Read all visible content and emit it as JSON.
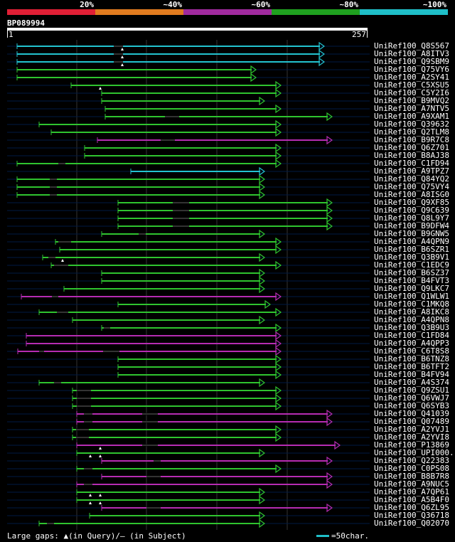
{
  "legend": {
    "labels": [
      "20%",
      "~40%",
      "~60%",
      "~80%",
      "~100%"
    ],
    "colors": [
      "#e01f35",
      "#e07b1f",
      "#a02a9e",
      "#1fa01f",
      "#1fbfc8"
    ]
  },
  "query": {
    "id": "BP089994",
    "start_label": "1",
    "end_label": "257"
  },
  "footer": {
    "gaps_text": "Large gaps: ▲(in Query)/– (in Subject)",
    "scale_text": "=50char."
  },
  "colors": {
    "green": "#2fc42f",
    "cyan": "#23c3d0",
    "magenta": "#b62cb2",
    "dim": "#333333",
    "line": "#001a44"
  },
  "hits": [
    {
      "label": "UniRef100_Q8S567",
      "color": "cyan",
      "start": 24,
      "end": 456,
      "gaps": [
        [
          160,
          173
        ]
      ],
      "marks": [
        172
      ]
    },
    {
      "label": "UniRef100_A8ITV3",
      "color": "cyan",
      "start": 24,
      "end": 456,
      "gaps": [
        [
          160,
          173
        ]
      ],
      "marks": [
        172
      ]
    },
    {
      "label": "UniRef100_Q9SBM9",
      "color": "cyan",
      "start": 24,
      "end": 456,
      "gaps": [
        [
          160,
          173
        ]
      ],
      "marks": [
        172
      ]
    },
    {
      "label": "UniRef100_Q75VY6",
      "color": "green",
      "start": 24,
      "end": 360,
      "gaps": [],
      "marks": []
    },
    {
      "label": "UniRef100_A2SY41",
      "color": "green",
      "start": 24,
      "end": 360,
      "gaps": [],
      "marks": []
    },
    {
      "label": "UniRef100_C5XSU5",
      "color": "green",
      "start": 100,
      "end": 395,
      "gaps": [],
      "marks": [
        141
      ]
    },
    {
      "label": "UniRef100_C5Y2I6",
      "color": "green",
      "start": 143,
      "end": 395,
      "gaps": [],
      "marks": []
    },
    {
      "label": "UniRef100_B9MVQ2",
      "color": "green",
      "start": 143,
      "end": 372,
      "gaps": [],
      "marks": []
    },
    {
      "label": "UniRef100_A7NTV5",
      "color": "green",
      "start": 148,
      "end": 395,
      "gaps": [],
      "marks": []
    },
    {
      "label": "UniRef100_A9XAM1",
      "color": "green",
      "start": 148,
      "end": 467,
      "gaps": [
        [
          232,
          252
        ]
      ],
      "marks": []
    },
    {
      "label": "UniRef100_Q39632",
      "color": "green",
      "start": 55,
      "end": 395,
      "gaps": [],
      "marks": []
    },
    {
      "label": "UniRef100_Q2TLM8",
      "color": "green",
      "start": 72,
      "end": 395,
      "gaps": [],
      "marks": []
    },
    {
      "label": "UniRef100_B9R7C8",
      "color": "magenta",
      "start": 137,
      "end": 467,
      "gaps": [
        [
          226,
          246
        ]
      ],
      "marks": []
    },
    {
      "label": "UniRef100_Q6Z701",
      "color": "green",
      "start": 119,
      "end": 395,
      "gaps": [],
      "marks": []
    },
    {
      "label": "UniRef100_B8AJ38",
      "color": "green",
      "start": 119,
      "end": 395,
      "gaps": [],
      "marks": []
    },
    {
      "label": "UniRef100_C1FD94",
      "color": "green",
      "start": 24,
      "end": 395,
      "gaps": [
        [
          82,
          92
        ]
      ],
      "marks": []
    },
    {
      "label": "UniRef100_A9TPZ7",
      "color": "cyan",
      "start": 184,
      "end": 372,
      "gaps": [],
      "marks": []
    },
    {
      "label": "UniRef100_Q84YQ2",
      "color": "green",
      "start": 24,
      "end": 372,
      "gaps": [
        [
          70,
          80
        ]
      ],
      "marks": []
    },
    {
      "label": "UniRef100_Q75VY4",
      "color": "green",
      "start": 24,
      "end": 372,
      "gaps": [
        [
          70,
          80
        ]
      ],
      "marks": []
    },
    {
      "label": "UniRef100_A8ISG0",
      "color": "green",
      "start": 24,
      "end": 372,
      "gaps": [
        [
          70,
          80
        ]
      ],
      "marks": []
    },
    {
      "label": "UniRef100_Q9XF85",
      "color": "green",
      "start": 166,
      "end": 467,
      "gaps": [
        [
          243,
          266
        ]
      ],
      "marks": []
    },
    {
      "label": "UniRef100_Q9C639",
      "color": "green",
      "start": 166,
      "end": 467,
      "gaps": [
        [
          243,
          266
        ]
      ],
      "marks": []
    },
    {
      "label": "UniRef100_Q8L9Y7",
      "color": "green",
      "start": 166,
      "end": 467,
      "gaps": [
        [
          243,
          266
        ]
      ],
      "marks": []
    },
    {
      "label": "UniRef100_B9DFW4",
      "color": "green",
      "start": 166,
      "end": 467,
      "gaps": [
        [
          243,
          266
        ]
      ],
      "marks": []
    },
    {
      "label": "UniRef100_B9GNW5",
      "color": "green",
      "start": 143,
      "end": 372,
      "gaps": [
        [
          195,
          205
        ]
      ],
      "marks": []
    },
    {
      "label": "UniRef100_A4QPN9",
      "color": "green",
      "start": 78,
      "end": 395,
      "gaps": [
        [
          82,
          100
        ]
      ],
      "marks": []
    },
    {
      "label": "UniRef100_B6SZR1",
      "color": "green",
      "start": 84,
      "end": 395,
      "gaps": [],
      "marks": []
    },
    {
      "label": "UniRef100_Q3B9V1",
      "color": "green",
      "start": 60,
      "end": 372,
      "gaps": [
        [
          68,
          78
        ]
      ],
      "marks": [
        88
      ]
    },
    {
      "label": "UniRef100_C1EDC9",
      "color": "green",
      "start": 72,
      "end": 395,
      "gaps": [
        [
          76,
          96
        ]
      ],
      "marks": []
    },
    {
      "label": "UniRef100_B6SZ37",
      "color": "green",
      "start": 143,
      "end": 372,
      "gaps": [],
      "marks": []
    },
    {
      "label": "UniRef100_B4FVT3",
      "color": "green",
      "start": 143,
      "end": 372,
      "gaps": [],
      "marks": []
    },
    {
      "label": "UniRef100_Q9LKC7",
      "color": "green",
      "start": 90,
      "end": 372,
      "gaps": [],
      "marks": []
    },
    {
      "label": "UniRef100_Q1WLW1",
      "color": "magenta",
      "start": 30,
      "end": 395,
      "gaps": [
        [
          73,
          82
        ]
      ],
      "marks": []
    },
    {
      "label": "UniRef100_C1MKQ8",
      "color": "green",
      "start": 166,
      "end": 380,
      "gaps": [],
      "marks": []
    },
    {
      "label": "UniRef100_A8IKC8",
      "color": "green",
      "start": 55,
      "end": 395,
      "gaps": [
        [
          80,
          96
        ]
      ],
      "marks": []
    },
    {
      "label": "UniRef100_A4QPN8",
      "color": "green",
      "start": 102,
      "end": 372,
      "gaps": [],
      "marks": []
    },
    {
      "label": "UniRef100_Q3B9U3",
      "color": "green",
      "start": 143,
      "end": 395,
      "gaps": [
        [
          146,
          155
        ]
      ],
      "marks": []
    },
    {
      "label": "UniRef100_C1FD84",
      "color": "magenta",
      "start": 37,
      "end": 395,
      "gaps": [],
      "marks": []
    },
    {
      "label": "UniRef100_A4QPP3",
      "color": "magenta",
      "start": 37,
      "end": 395,
      "gaps": [],
      "marks": []
    },
    {
      "label": "UniRef100_C6T8S8",
      "color": "magenta",
      "start": 25,
      "end": 395,
      "gaps": [
        [
          55,
          62
        ],
        [
          145,
          168
        ]
      ],
      "marks": []
    },
    {
      "label": "UniRef100_B6TNZ8",
      "color": "green",
      "start": 166,
      "end": 395,
      "gaps": [],
      "marks": []
    },
    {
      "label": "UniRef100_B6TFT2",
      "color": "green",
      "start": 166,
      "end": 395,
      "gaps": [],
      "marks": []
    },
    {
      "label": "UniRef100_B4FV94",
      "color": "green",
      "start": 166,
      "end": 395,
      "gaps": [],
      "marks": []
    },
    {
      "label": "UniRef100_A4S374",
      "color": "green",
      "start": 55,
      "end": 372,
      "gaps": [
        [
          76,
          86
        ]
      ],
      "marks": []
    },
    {
      "label": "UniRef100_Q9ZSU1",
      "color": "green",
      "start": 102,
      "end": 395,
      "gaps": [
        [
          108,
          128
        ]
      ],
      "marks": []
    },
    {
      "label": "UniRef100_Q6VWJ7",
      "color": "green",
      "start": 102,
      "end": 395,
      "gaps": [
        [
          108,
          128
        ]
      ],
      "marks": []
    },
    {
      "label": "UniRef100_Q6SYB3",
      "color": "green",
      "start": 102,
      "end": 395,
      "gaps": [
        [
          108,
          128
        ]
      ],
      "marks": []
    },
    {
      "label": "UniRef100_Q41039",
      "color": "magenta",
      "start": 108,
      "end": 467,
      "gaps": [
        [
          118,
          130
        ],
        [
          200,
          222
        ]
      ],
      "marks": []
    },
    {
      "label": "UniRef100_Q07489",
      "color": "magenta",
      "start": 108,
      "end": 467,
      "gaps": [
        [
          118,
          130
        ],
        [
          200,
          222
        ]
      ],
      "marks": []
    },
    {
      "label": "UniRef100_A2YVJ1",
      "color": "green",
      "start": 102,
      "end": 395,
      "gaps": [
        [
          107,
          125
        ]
      ],
      "marks": []
    },
    {
      "label": "UniRef100_A2YVI8",
      "color": "green",
      "start": 102,
      "end": 395,
      "gaps": [
        [
          107,
          125
        ]
      ],
      "marks": []
    },
    {
      "label": "UniRef100_P13869",
      "color": "magenta",
      "start": 108,
      "end": 478,
      "gaps": [
        [
          200,
          222
        ]
      ],
      "marks": [
        141
      ]
    },
    {
      "label": "UniRef100_UPI000..",
      "color": "green",
      "start": 108,
      "end": 372,
      "gaps": [],
      "marks": [
        127,
        141
      ]
    },
    {
      "label": "UniRef100_Q22383",
      "color": "magenta",
      "start": 143,
      "end": 467,
      "gaps": [
        [
          216,
          226
        ]
      ],
      "marks": []
    },
    {
      "label": "UniRef100_C0PS08",
      "color": "green",
      "start": 108,
      "end": 395,
      "gaps": [
        [
          118,
          130
        ]
      ],
      "marks": []
    },
    {
      "label": "UniRef100_B8B7R8",
      "color": "magenta",
      "start": 143,
      "end": 467,
      "gaps": [
        [
          206,
          226
        ]
      ],
      "marks": []
    },
    {
      "label": "UniRef100_A9NUC5",
      "color": "magenta",
      "start": 108,
      "end": 467,
      "gaps": [
        [
          118,
          130
        ]
      ],
      "marks": []
    },
    {
      "label": "UniRef100_A7QP61",
      "color": "green",
      "start": 108,
      "end": 372,
      "gaps": [],
      "marks": [
        127,
        141
      ]
    },
    {
      "label": "UniRef100_A5B4F0",
      "color": "green",
      "start": 108,
      "end": 372,
      "gaps": [],
      "marks": [
        127,
        141
      ]
    },
    {
      "label": "UniRef100_Q6ZL95",
      "color": "magenta",
      "start": 143,
      "end": 467,
      "gaps": [
        [
          206,
          226
        ]
      ],
      "marks": []
    },
    {
      "label": "UniRef100_Q36718",
      "color": "green",
      "start": 126,
      "end": 372,
      "gaps": [],
      "marks": []
    },
    {
      "label": "UniRef100_Q02070",
      "color": "green",
      "start": 55,
      "end": 372,
      "gaps": [
        [
          66,
          76
        ]
      ],
      "marks": []
    }
  ]
}
